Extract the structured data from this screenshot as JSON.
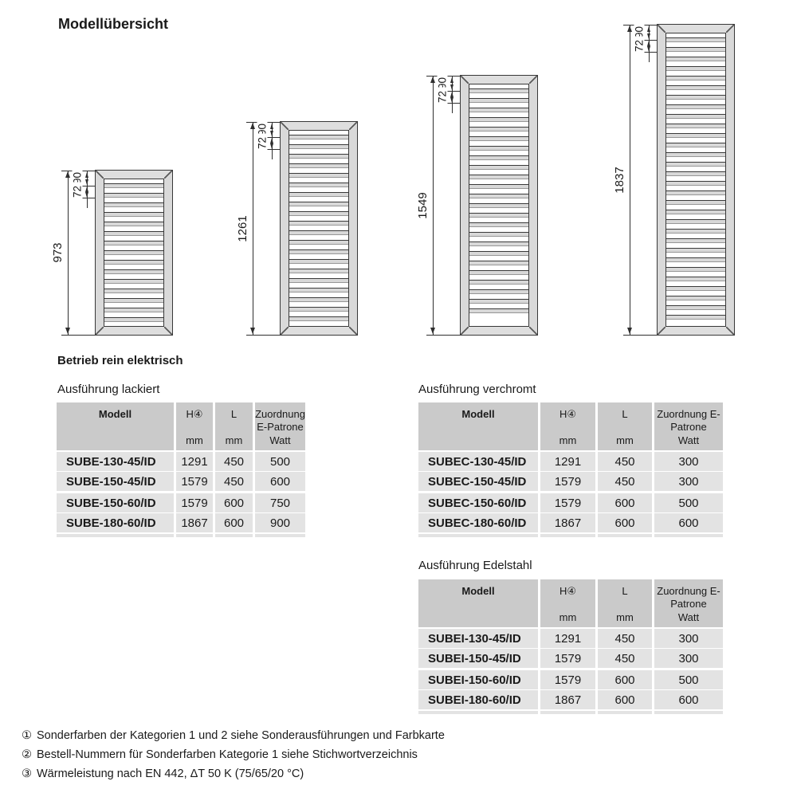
{
  "page": {
    "title": "Modellübersicht",
    "section_heading": "Betrieb rein elektrisch"
  },
  "diagrams": {
    "dim_labels": [
      "90",
      "72"
    ],
    "items": [
      {
        "height_mm": "973"
      },
      {
        "height_mm": "1261"
      },
      {
        "height_mm": "1549"
      },
      {
        "height_mm": "1837"
      }
    ]
  },
  "tables": [
    {
      "title": "Ausführung lackiert",
      "head": {
        "c0": "Modell",
        "c1": "H④",
        "c2": "L",
        "c3": "Zuordnung E-Patrone",
        "u1": "mm",
        "u2": "mm",
        "u3": "Watt"
      },
      "rows": [
        [
          "SUBE-130-45/ID",
          "1291",
          "450",
          "500"
        ],
        [
          "SUBE-150-45/ID",
          "1579",
          "450",
          "600"
        ],
        [
          "SUBE-150-60/ID",
          "1579",
          "600",
          "750"
        ],
        [
          "SUBE-180-60/ID",
          "1867",
          "600",
          "900"
        ]
      ]
    },
    {
      "title": "Ausführung verchromt",
      "head": {
        "c0": "Modell",
        "c1": "H④",
        "c2": "L",
        "c3": "Zuordnung E-Patrone",
        "u1": "mm",
        "u2": "mm",
        "u3": "Watt"
      },
      "rows": [
        [
          "SUBEC-130-45/ID",
          "1291",
          "450",
          "300"
        ],
        [
          "SUBEC-150-45/ID",
          "1579",
          "450",
          "300"
        ],
        [
          "SUBEC-150-60/ID",
          "1579",
          "600",
          "500"
        ],
        [
          "SUBEC-180-60/ID",
          "1867",
          "600",
          "600"
        ]
      ]
    },
    {
      "title": "Ausführung Edelstahl",
      "head": {
        "c0": "Modell",
        "c1": "H④",
        "c2": "L",
        "c3": "Zuordnung E-Patrone",
        "u1": "mm",
        "u2": "mm",
        "u3": "Watt"
      },
      "rows": [
        [
          "SUBEI-130-45/ID",
          "1291",
          "450",
          "300"
        ],
        [
          "SUBEI-150-45/ID",
          "1579",
          "450",
          "300"
        ],
        [
          "SUBEI-150-60/ID",
          "1579",
          "600",
          "500"
        ],
        [
          "SUBEI-180-60/ID",
          "1867",
          "600",
          "600"
        ]
      ]
    }
  ],
  "footnotes": [
    {
      "marker": "①",
      "text": "Sonderfarben der Kategorien 1 und 2 siehe Sonderausführungen und Farbkarte"
    },
    {
      "marker": "②",
      "text": "Bestell-Nummern für Sonderfarben Kategorie 1 siehe Stichwortverzeichnis"
    },
    {
      "marker": "③",
      "text": "Wärmeleistung nach EN 442, ΔT 50 K (75/65/20 °C)"
    }
  ],
  "colors": {
    "table_header_bg": "#cacaca",
    "table_row_bg": "#e3e3e3",
    "drawing_line": "#2f2f2f",
    "radiator_frame": "#d9d9d9"
  }
}
